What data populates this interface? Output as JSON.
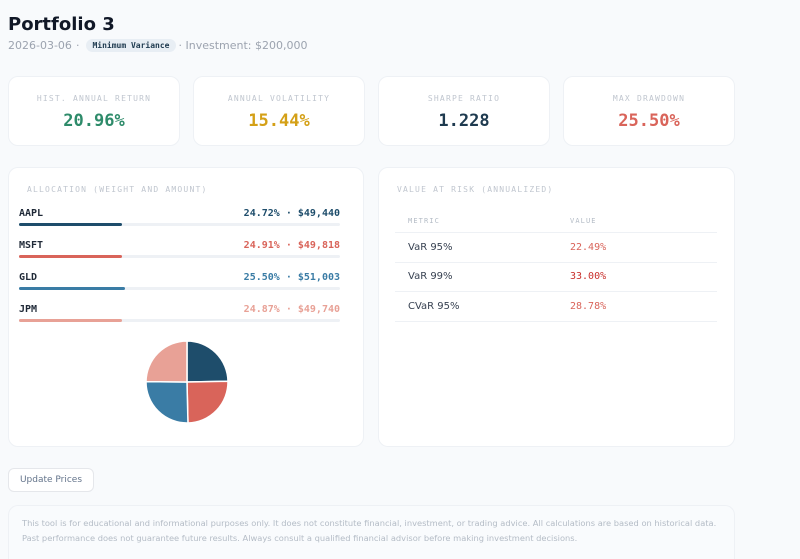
{
  "header": {
    "title": "Portfolio 3",
    "date": "2026-03-06",
    "separator": "·",
    "strategy_badge": "Minimum Variance",
    "investment": "· Investment: $200,000"
  },
  "metrics": [
    {
      "label": "HIST. ANNUAL RETURN",
      "value": "20.96%",
      "color": "#2e8b6a"
    },
    {
      "label": "ANNUAL VOLATILITY",
      "value": "15.44%",
      "color": "#d4a017"
    },
    {
      "label": "SHARPE RATIO",
      "value": "1.228",
      "color": "#1e3a4f"
    },
    {
      "label": "MAX DRAWDOWN",
      "value": "25.50%",
      "color": "#d9645a"
    }
  ],
  "allocation": {
    "label": "ALLOCATION (WEIGHT AND AMOUNT)",
    "items": [
      {
        "ticker": "AAPL",
        "display": "24.72% · $49,440",
        "weight": 24.72,
        "color": "#1e4d6b"
      },
      {
        "ticker": "MSFT",
        "display": "24.91% · $49,818",
        "weight": 24.91,
        "color": "#d9645a"
      },
      {
        "ticker": "GLD",
        "display": "25.50% · $51,003",
        "weight": 25.5,
        "color": "#3a7ca5"
      },
      {
        "ticker": "JPM",
        "display": "24.87% · $49,740",
        "weight": 24.87,
        "color": "#e8a196"
      }
    ]
  },
  "chart_data": {
    "type": "pie",
    "categories": [
      "AAPL",
      "MSFT",
      "GLD",
      "JPM"
    ],
    "values": [
      24.72,
      24.91,
      25.5,
      24.87
    ],
    "colors": [
      "#1e4d6b",
      "#d9645a",
      "#3a7ca5",
      "#e8a196"
    ]
  },
  "var": {
    "label": "VALUE AT RISK (ANNUALIZED)",
    "headers": [
      "METRIC",
      "VALUE"
    ],
    "rows": [
      {
        "metric": "VaR 95%",
        "value": "22.49%",
        "color": "#d9645a"
      },
      {
        "metric": "VaR 99%",
        "value": "33.00%",
        "color": "#c9302c"
      },
      {
        "metric": "CVaR 95%",
        "value": "28.78%",
        "color": "#d9645a"
      }
    ]
  },
  "actions": {
    "update_prices": "Update Prices"
  },
  "disclaimer": "This tool is for educational and informational purposes only. It does not constitute financial, investment, or trading advice. All calculations are based on historical data. Past performance does not guarantee future results. Always consult a qualified financial advisor before making investment decisions."
}
